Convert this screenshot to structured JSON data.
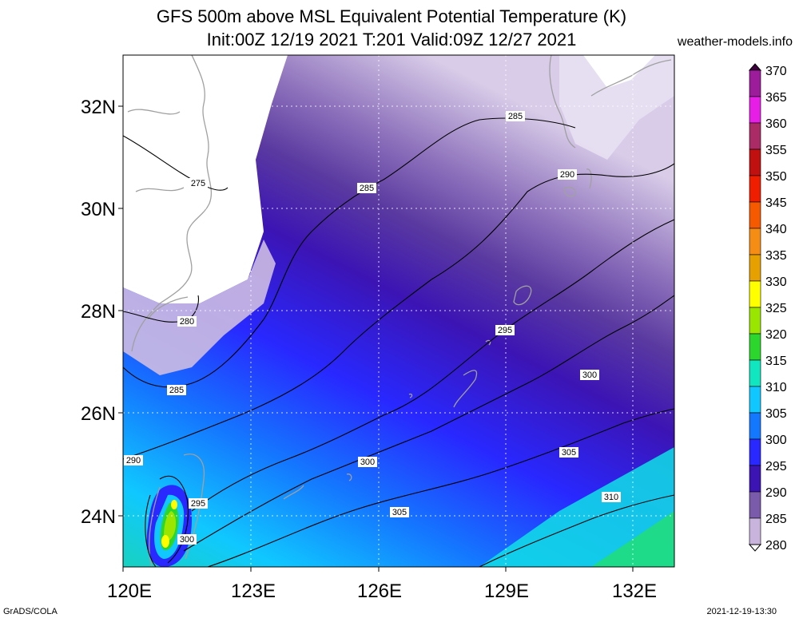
{
  "title_line1": "GFS 500m above MSL Equivalent Potential Temperature (K)",
  "title_line2": "Init:00Z 12/19 2021 T:201 Valid:09Z 12/27 2021",
  "site": "weather-models.info",
  "footer_left": "GrADS/COLA",
  "footer_right": "2021-12-19-13:30",
  "map": {
    "lon_ticks": [
      "120E",
      "123E",
      "126E",
      "129E",
      "132E"
    ],
    "lat_ticks": [
      "24N",
      "26N",
      "28N",
      "30N",
      "32N"
    ],
    "contour_labels": [
      "275",
      "280",
      "285",
      "285",
      "285",
      "290",
      "290",
      "295",
      "295",
      "300",
      "300",
      "300",
      "305",
      "305",
      "310"
    ]
  },
  "colorbar": {
    "values": [
      "370",
      "365",
      "360",
      "355",
      "350",
      "345",
      "340",
      "335",
      "330",
      "325",
      "320",
      "315",
      "310",
      "305",
      "300",
      "295",
      "290",
      "285",
      "280"
    ],
    "colors": [
      "#400040",
      "#9c1c9c",
      "#e61ee6",
      "#aa2b66",
      "#c01010",
      "#f01e00",
      "#f55a00",
      "#f58c14",
      "#e6a000",
      "#ffff00",
      "#9ae600",
      "#2cd62c",
      "#10e6c0",
      "#10c8ff",
      "#1478ff",
      "#2828ff",
      "#3c14b4",
      "#7a5aaa",
      "#c8b4dc",
      "#ffffff"
    ]
  }
}
